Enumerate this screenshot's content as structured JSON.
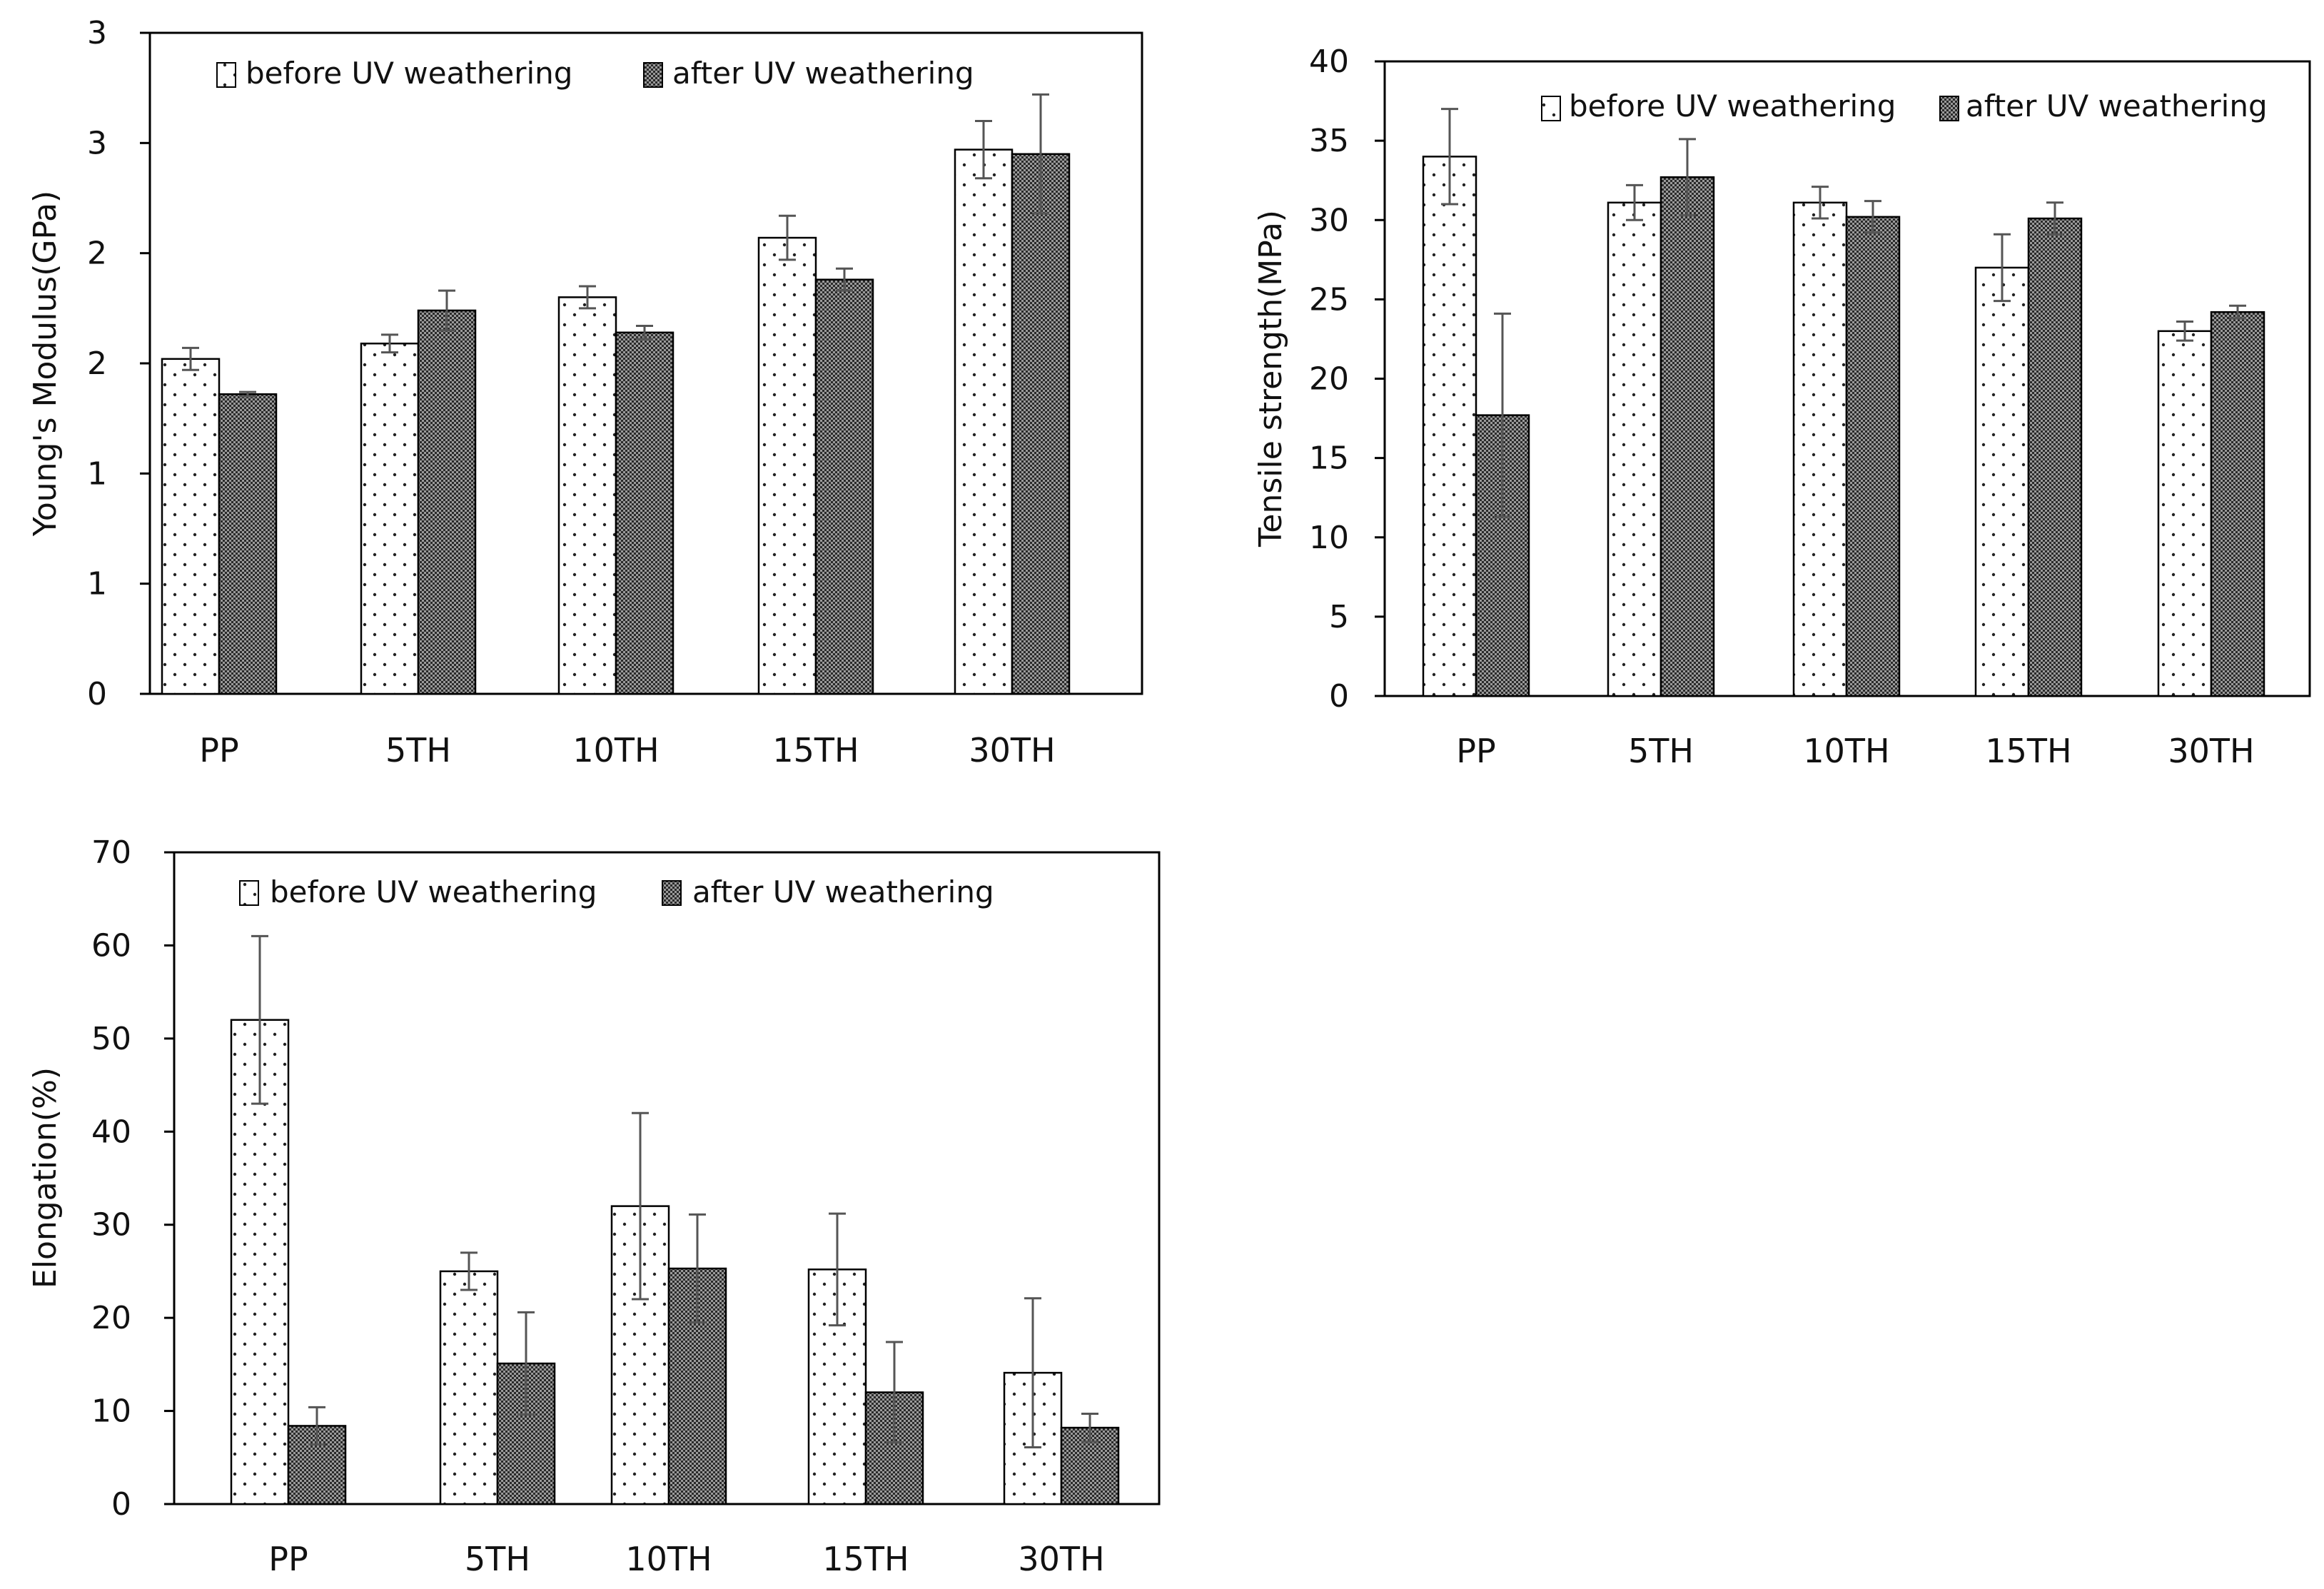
{
  "colors": {
    "frame": "#000000",
    "before_fill": "#ffffff",
    "before_dots": "#222222",
    "after_fill": "#8a8a8a",
    "after_dark": "#262626",
    "error_bar": "#555555",
    "text": "#111111"
  },
  "chart_data": [
    {
      "id": "modulus",
      "type": "bar",
      "title": "",
      "xlabel": "",
      "ylabel": "Young's Modulus(GPa)",
      "categories": [
        "PP",
        "5TH",
        "10TH",
        "15TH",
        "30TH"
      ],
      "ylim": [
        0,
        3
      ],
      "yticks": [
        0,
        0.5,
        1,
        1.5,
        2,
        2.5,
        3
      ],
      "ytick_labels": [
        "0",
        "1",
        "1",
        "2",
        "2",
        "3",
        "3"
      ],
      "legend": [
        "before UV weathering",
        "after UV weathering"
      ],
      "legend_position": "top-left",
      "series": [
        {
          "name": "before UV weathering",
          "values": [
            1.52,
            1.59,
            1.8,
            2.07,
            2.47
          ],
          "errors": [
            0.05,
            0.04,
            0.05,
            0.1,
            0.13
          ]
        },
        {
          "name": "after UV weathering",
          "values": [
            1.36,
            1.74,
            1.64,
            1.88,
            2.45
          ],
          "errors": [
            0.01,
            0.09,
            0.03,
            0.05,
            0.27
          ]
        }
      ]
    },
    {
      "id": "tensile",
      "type": "bar",
      "title": "",
      "xlabel": "",
      "ylabel": "Tensile strength(MPa)",
      "categories": [
        "PP",
        "5TH",
        "10TH",
        "15TH",
        "30TH"
      ],
      "ylim": [
        0,
        40
      ],
      "yticks": [
        0,
        5,
        10,
        15,
        20,
        25,
        30,
        35,
        40
      ],
      "ytick_labels": [
        "0",
        "5",
        "10",
        "15",
        "20",
        "25",
        "30",
        "35",
        "40"
      ],
      "legend": [
        "before UV weathering",
        "after UV weathering"
      ],
      "legend_position": "top-right",
      "series": [
        {
          "name": "before UV weathering",
          "values": [
            34.0,
            31.1,
            31.1,
            27.0,
            23.0
          ],
          "errors": [
            3.0,
            1.1,
            1.0,
            2.1,
            0.6
          ]
        },
        {
          "name": "after UV weathering",
          "values": [
            17.7,
            32.7,
            30.2,
            30.1,
            24.2
          ],
          "errors": [
            6.4,
            2.4,
            1.0,
            1.0,
            0.4
          ]
        }
      ]
    },
    {
      "id": "elongation",
      "type": "bar",
      "title": "",
      "xlabel": "",
      "ylabel": "Elongation(%)",
      "categories": [
        "PP",
        "5TH",
        "10TH",
        "15TH",
        "30TH"
      ],
      "ylim": [
        0,
        70
      ],
      "yticks": [
        0,
        10,
        20,
        30,
        40,
        50,
        60,
        70
      ],
      "ytick_labels": [
        "0",
        "10",
        "20",
        "30",
        "40",
        "50",
        "60",
        "70"
      ],
      "legend": [
        "before UV weathering",
        "after UV weathering"
      ],
      "legend_position": "top-left",
      "series": [
        {
          "name": "before UV weathering",
          "values": [
            52.0,
            25.0,
            32.0,
            25.2,
            14.1
          ],
          "errors": [
            9.0,
            2.0,
            10.0,
            6.0,
            8.0
          ]
        },
        {
          "name": "after UV weathering",
          "values": [
            8.4,
            15.1,
            25.3,
            12.0,
            8.2
          ],
          "errors": [
            2.0,
            5.5,
            5.8,
            5.4,
            1.5
          ]
        }
      ]
    }
  ]
}
